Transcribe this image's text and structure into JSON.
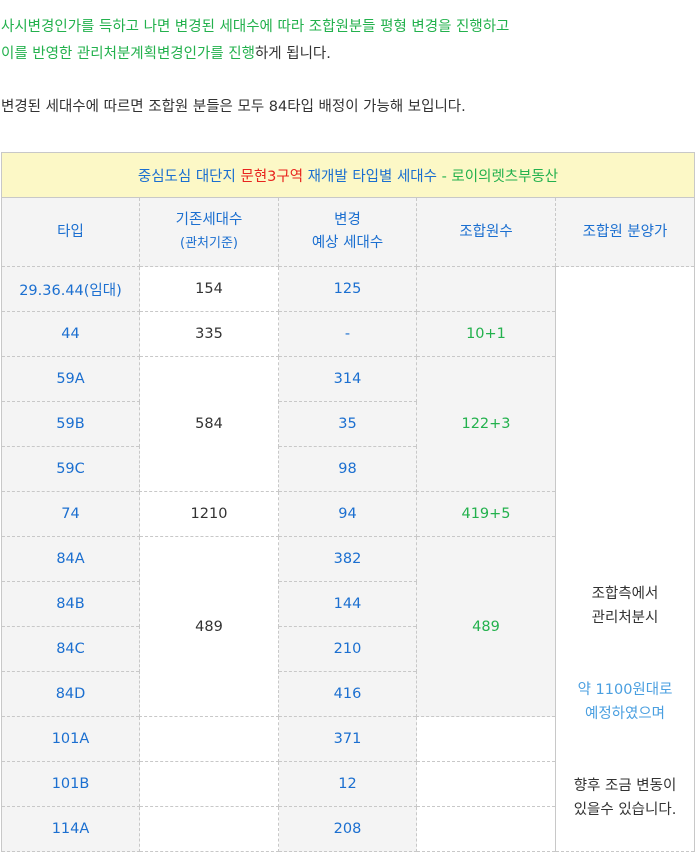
{
  "intro": {
    "line1": "사시변경인가를 득하고 나면 변경된 세대수에 따라 조합원분들 평형 변경을 진행하고",
    "line2_green": "이를 반영한 관리처분계획변경인가를 진행",
    "line2_tail": "하게 됩니다.",
    "line3": "변경된 세대수에 따르면 조합원 분들은 모두 84타입 배정이 가능해 보입니다."
  },
  "table": {
    "title": {
      "part1": "중심도심 대단지 ",
      "part2": "문현3구역",
      "part3": " 재개발 타입별 세대수",
      "part4": " - 로이의렛츠부동산"
    },
    "headers": {
      "type": "타입",
      "existing_line1": "기존세대수",
      "existing_line2": "(관처기준)",
      "changed_line1": "변경",
      "changed_line2": "예상 세대수",
      "members": "조합원수",
      "price": "조합원 분양가"
    },
    "rows": [
      {
        "type": "29.36.44(임대)",
        "existing": "154",
        "changed": "125",
        "members": ""
      },
      {
        "type": "44",
        "existing": "335",
        "changed": "-",
        "members": "10+1"
      },
      {
        "type": "59A",
        "existing": "584",
        "changed": "314",
        "members": "122+3"
      },
      {
        "type": "59B",
        "existing": "",
        "changed": "35",
        "members": ""
      },
      {
        "type": "59C",
        "existing": "",
        "changed": "98",
        "members": ""
      },
      {
        "type": "74",
        "existing": "1210",
        "changed": "94",
        "members": "419+5"
      },
      {
        "type": "84A",
        "existing": "489",
        "changed": "382",
        "members": "489"
      },
      {
        "type": "84B",
        "existing": "",
        "changed": "144",
        "members": ""
      },
      {
        "type": "84C",
        "existing": "",
        "changed": "210",
        "members": ""
      },
      {
        "type": "84D",
        "existing": "",
        "changed": "416",
        "members": ""
      },
      {
        "type": "101A",
        "existing": "",
        "changed": "371",
        "members": ""
      },
      {
        "type": "101B",
        "existing": "",
        "changed": "12",
        "members": ""
      },
      {
        "type": "114A",
        "existing": "",
        "changed": "208",
        "members": ""
      }
    ],
    "price_note": {
      "line1": "조합측에서",
      "line2": "관리처분시",
      "line3": "약 1100원대로",
      "line4": "예정하였으며",
      "line5": "향후 조금 변동이",
      "line6": "있을수 있습니다."
    }
  }
}
